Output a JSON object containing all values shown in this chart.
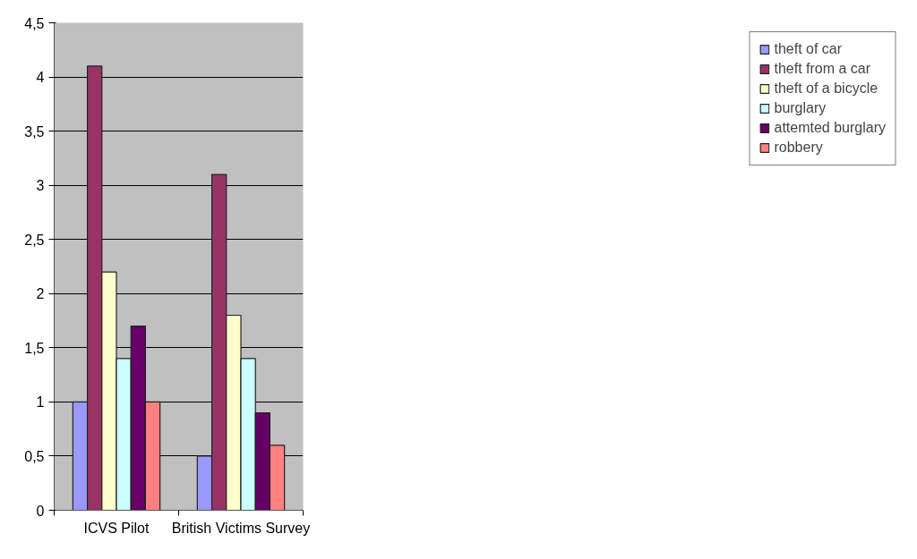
{
  "chart_data": {
    "type": "bar",
    "categories": [
      "ICVS Pilot",
      "British Victims Survey"
    ],
    "series": [
      {
        "name": "theft of car",
        "color": "#9999ff",
        "values": [
          1.0,
          0.5
        ]
      },
      {
        "name": "theft from a car",
        "color": "#993366",
        "values": [
          4.1,
          3.1
        ]
      },
      {
        "name": "theft of a bicycle",
        "color": "#ffffcc",
        "values": [
          2.2,
          1.8
        ]
      },
      {
        "name": "burglary",
        "color": "#ccffff",
        "values": [
          1.4,
          1.4
        ]
      },
      {
        "name": "attemted burglary",
        "color": "#660066",
        "values": [
          1.7,
          0.9
        ]
      },
      {
        "name": "robbery",
        "color": "#ff8080",
        "values": [
          1.0,
          0.6
        ]
      }
    ],
    "ylim": [
      0,
      4.5
    ],
    "yticks": [
      0,
      {
        "value": 0.5,
        "label": "0,5"
      },
      1,
      {
        "value": 1.5,
        "label": "1,5"
      },
      2,
      {
        "value": 2.5,
        "label": "2,5"
      },
      3,
      {
        "value": 3.5,
        "label": "3,5"
      },
      4,
      {
        "value": 4.5,
        "label": "4,5"
      }
    ],
    "grid": "y",
    "legend": "right"
  }
}
